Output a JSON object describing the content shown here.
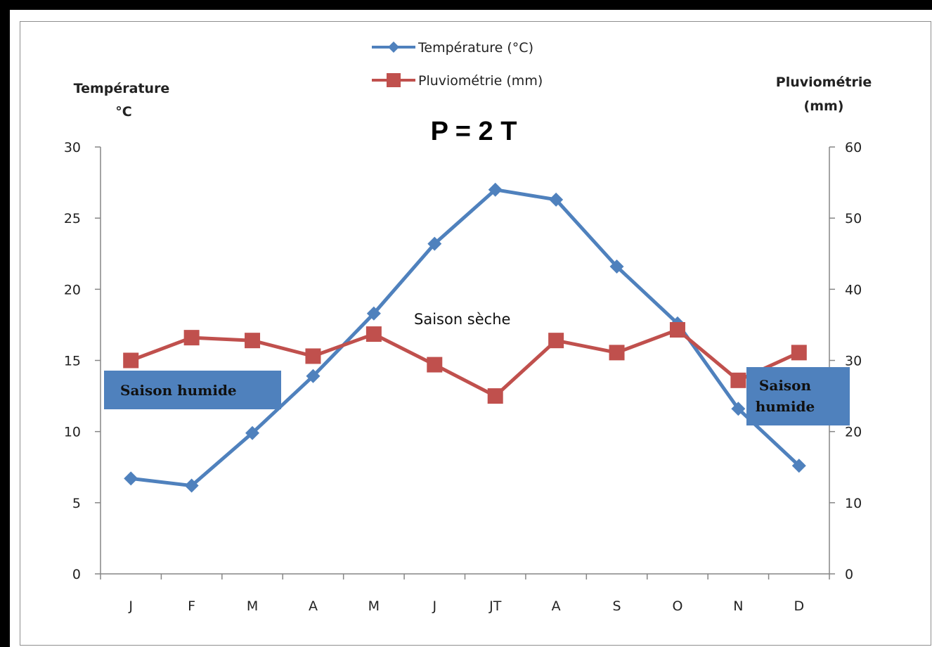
{
  "chart_data": {
    "type": "line",
    "title": "P = 2 T",
    "categories": [
      "J",
      "F",
      "M",
      "A",
      "M",
      "J",
      "JT",
      "A",
      "S",
      "O",
      "N",
      "D"
    ],
    "y_left": {
      "label_line1": "Température",
      "label_line2": "°C",
      "ylim": [
        0,
        30
      ],
      "ticks": [
        0,
        5,
        10,
        15,
        20,
        25,
        30
      ]
    },
    "y_right": {
      "label_line1": "Pluviométrie",
      "label_line2": "(mm)",
      "ylim": [
        0,
        60
      ],
      "ticks": [
        0,
        10,
        20,
        30,
        40,
        50,
        60
      ]
    },
    "series": [
      {
        "name": "Température (°C)",
        "axis": "left",
        "color": "#4f81bd",
        "marker": "diamond",
        "values": [
          6.7,
          6.2,
          9.9,
          13.9,
          18.3,
          23.2,
          27.0,
          26.3,
          21.6,
          17.6,
          11.6,
          7.6
        ]
      },
      {
        "name": "Pluviométrie (mm)",
        "axis": "right",
        "color": "#c0504d",
        "marker": "square",
        "values": [
          30.0,
          33.2,
          32.8,
          30.6,
          33.7,
          29.4,
          25.0,
          32.8,
          31.1,
          34.3,
          27.2,
          31.1
        ]
      }
    ],
    "legend_placement": "top-center",
    "grid": false,
    "annotations": {
      "dry": "Saison sèche",
      "wet_left": "Saison humide",
      "wet_right_line1": "Saison",
      "wet_right_line2": "humide"
    },
    "annotation_box_color": "#4f81bd"
  }
}
